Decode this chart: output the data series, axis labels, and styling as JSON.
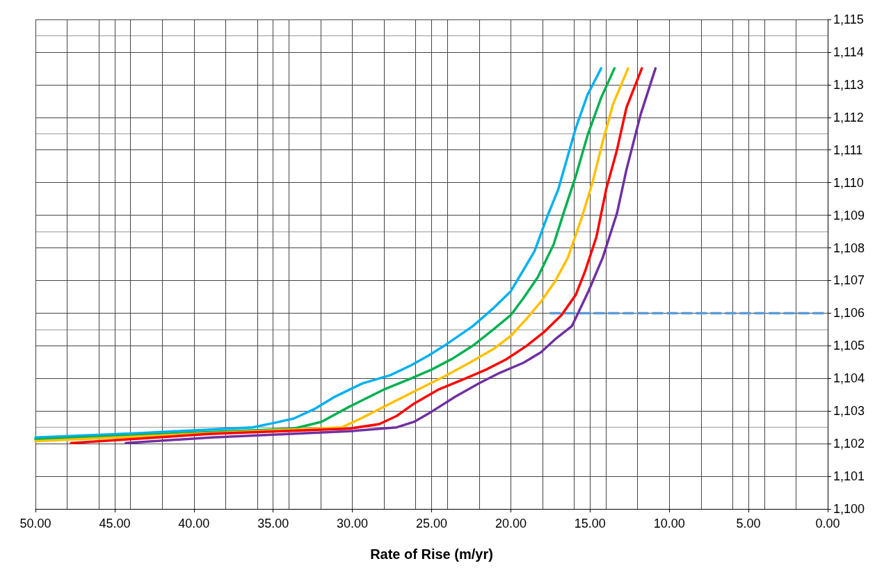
{
  "chart_data": {
    "type": "line",
    "xlabel": "Rate of Rise (m/yr)",
    "grid": true,
    "xlim": [
      50,
      0
    ],
    "xticks": [
      {
        "value": 50,
        "label": "50.00"
      },
      {
        "value": 45,
        "label": "45.00"
      },
      {
        "value": 40,
        "label": "40.00"
      },
      {
        "value": 35,
        "label": "35.00"
      },
      {
        "value": 30,
        "label": "30.00"
      },
      {
        "value": 25,
        "label": "25.00"
      },
      {
        "value": 20,
        "label": "20.00"
      },
      {
        "value": 15,
        "label": "15.00"
      },
      {
        "value": 10,
        "label": "10.00"
      },
      {
        "value": 5,
        "label": "5.00"
      },
      {
        "value": 0,
        "label": "0.00"
      }
    ],
    "ylim": [
      1100,
      1115
    ],
    "yticks": [
      {
        "value": 1100,
        "label": "1,100"
      },
      {
        "value": 1101,
        "label": "1,101"
      },
      {
        "value": 1102,
        "label": "1,102"
      },
      {
        "value": 1103,
        "label": "1,103"
      },
      {
        "value": 1104,
        "label": "1,104"
      },
      {
        "value": 1105,
        "label": "1,105"
      },
      {
        "value": 1106,
        "label": "1,106"
      },
      {
        "value": 1107,
        "label": "1,107"
      },
      {
        "value": 1108,
        "label": "1,108"
      },
      {
        "value": 1109,
        "label": "1,109"
      },
      {
        "value": 1110,
        "label": "1,110"
      },
      {
        "value": 1111,
        "label": "1,111"
      },
      {
        "value": 1112,
        "label": "1,112"
      },
      {
        "value": 1113,
        "label": "1,113"
      },
      {
        "value": 1114,
        "label": "1,114"
      },
      {
        "value": 1115,
        "label": "1,115"
      }
    ],
    "series": [
      {
        "color": "#00b0f0",
        "x": [
          50,
          43.2,
          36.3,
          34.8,
          33.7,
          32.4,
          31.1,
          29.35,
          27.6,
          26.3,
          25.2,
          24.2,
          22.4,
          21.1,
          20.0,
          18.5,
          17.7,
          17.0,
          15.9,
          15.15,
          14.3
        ],
        "values": [
          1102.19,
          1102.33,
          1102.5,
          1102.65,
          1102.77,
          1103.06,
          1103.44,
          1103.85,
          1104.1,
          1104.4,
          1104.7,
          1105.0,
          1105.6,
          1106.15,
          1106.67,
          1107.9,
          1108.96,
          1109.8,
          1111.67,
          1112.7,
          1113.5
        ]
      },
      {
        "color": "#00b050",
        "x": [
          50,
          33.7,
          31.95,
          30.2,
          28.05,
          26.3,
          25.0,
          23.7,
          22.4,
          21.1,
          20.0,
          19.2,
          18.3,
          17.3,
          16.6,
          15.9,
          15.15,
          14.3,
          13.46
        ],
        "values": [
          1102.13,
          1102.46,
          1102.67,
          1103.13,
          1103.65,
          1104.0,
          1104.27,
          1104.6,
          1105.0,
          1105.5,
          1105.94,
          1106.46,
          1107.1,
          1108.1,
          1109.17,
          1110.2,
          1111.46,
          1112.6,
          1113.5
        ]
      },
      {
        "color": "#ffc000",
        "x": [
          50,
          30.65,
          29.35,
          27.6,
          25.9,
          24.2,
          22.6,
          21.1,
          20.0,
          19.0,
          18.1,
          17.2,
          16.4,
          15.5,
          14.85,
          14.2,
          13.55,
          12.6
        ],
        "values": [
          1102.08,
          1102.5,
          1102.8,
          1103.23,
          1103.65,
          1104.06,
          1104.48,
          1104.9,
          1105.3,
          1105.83,
          1106.35,
          1106.98,
          1107.7,
          1108.96,
          1110.0,
          1111.25,
          1112.4,
          1113.5
        ]
      },
      {
        "color": "#ff0000",
        "x": [
          47.75,
          38.9,
          30.2,
          28.3,
          27.2,
          26.1,
          24.6,
          22.86,
          21.56,
          20.3,
          19.0,
          17.9,
          16.8,
          15.9,
          15.3,
          14.6,
          13.98,
          13.3,
          12.7,
          11.73
        ],
        "values": [
          1102.02,
          1102.3,
          1102.46,
          1102.6,
          1102.85,
          1103.23,
          1103.65,
          1104.0,
          1104.27,
          1104.58,
          1105.0,
          1105.42,
          1105.94,
          1106.56,
          1107.3,
          1108.33,
          1109.8,
          1111.0,
          1112.3,
          1113.5
        ]
      },
      {
        "color": "#7030a0",
        "x": [
          44.3,
          38.9,
          30.2,
          27.2,
          26.1,
          25.0,
          23.5,
          22.0,
          20.7,
          19.2,
          18.1,
          17.2,
          16.15,
          15.1,
          14.2,
          13.3,
          12.7,
          11.8,
          10.87
        ],
        "values": [
          1102.02,
          1102.19,
          1102.38,
          1102.5,
          1102.67,
          1102.98,
          1103.44,
          1103.85,
          1104.17,
          1104.48,
          1104.8,
          1105.2,
          1105.6,
          1106.67,
          1107.7,
          1109.06,
          1110.4,
          1112.1,
          1113.5
        ]
      },
      {
        "color": "#5b9bd5",
        "line_style": "dashed",
        "x": [
          17.5,
          0
        ],
        "values": [
          1106,
          1106
        ]
      }
    ]
  }
}
